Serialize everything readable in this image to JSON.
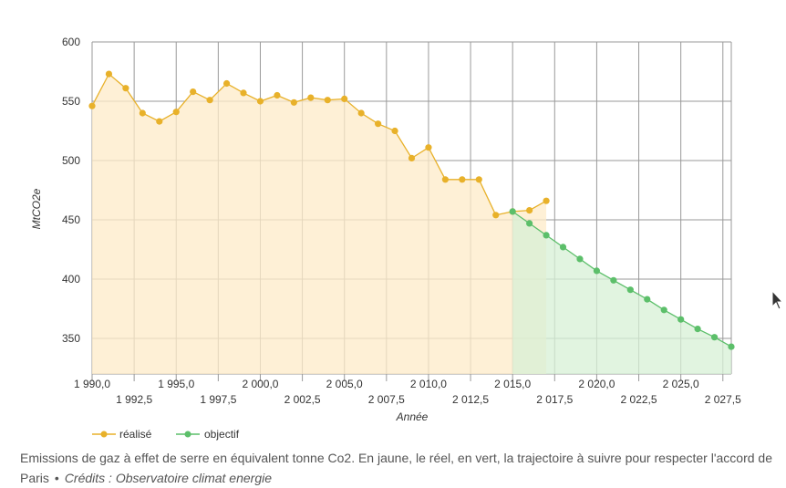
{
  "chart_data": {
    "type": "area",
    "xlabel": "Année",
    "ylabel": "MtCO2e",
    "xlim": [
      1990,
      2028
    ],
    "ylim": [
      320,
      600
    ],
    "grid": true,
    "legend_position": "bottom-left",
    "x_ticks_row1": [
      "1 990,0",
      "1 995,0",
      "2 000,0",
      "2 005,0",
      "2 010,0",
      "2 015,0",
      "2 020,0",
      "2 025,0"
    ],
    "x_ticks_row2": [
      "1 992,5",
      "1 997,5",
      "2 002,5",
      "2 007,5",
      "2 012,5",
      "2 017,5",
      "2 022,5",
      "2 027,5"
    ],
    "y_ticks": [
      "350",
      "400",
      "450",
      "500",
      "550",
      "600"
    ],
    "series": [
      {
        "name": "réalisé",
        "color": "#e8b12a",
        "fill": "#fdebc8",
        "x": [
          1990,
          1991,
          1992,
          1993,
          1994,
          1995,
          1996,
          1997,
          1998,
          1999,
          2000,
          2001,
          2002,
          2003,
          2004,
          2005,
          2006,
          2007,
          2008,
          2009,
          2010,
          2011,
          2012,
          2013,
          2014,
          2015,
          2016,
          2017
        ],
        "values": [
          546,
          573,
          561,
          540,
          533,
          541,
          558,
          551,
          565,
          557,
          550,
          555,
          549,
          553,
          551,
          552,
          540,
          531,
          525,
          502,
          511,
          484,
          484,
          484,
          454,
          457,
          458,
          466
        ]
      },
      {
        "name": "objectif",
        "color": "#5cbf6a",
        "fill": "#d7f0d6",
        "x": [
          2015,
          2016,
          2017,
          2018,
          2019,
          2020,
          2021,
          2022,
          2023,
          2024,
          2025,
          2026,
          2027,
          2028
        ],
        "values": [
          457,
          447,
          437,
          427,
          417,
          407,
          399,
          391,
          383,
          374,
          366,
          358,
          351,
          343
        ]
      }
    ]
  },
  "caption": {
    "text": "Emissions de gaz à effet de serre en équivalent tonne Co2. En jaune, le réel, en vert, la trajectoire à suivre pour respecter l'accord de Paris",
    "separator": "•",
    "credits": "Crédits : Observatoire climat energie"
  }
}
